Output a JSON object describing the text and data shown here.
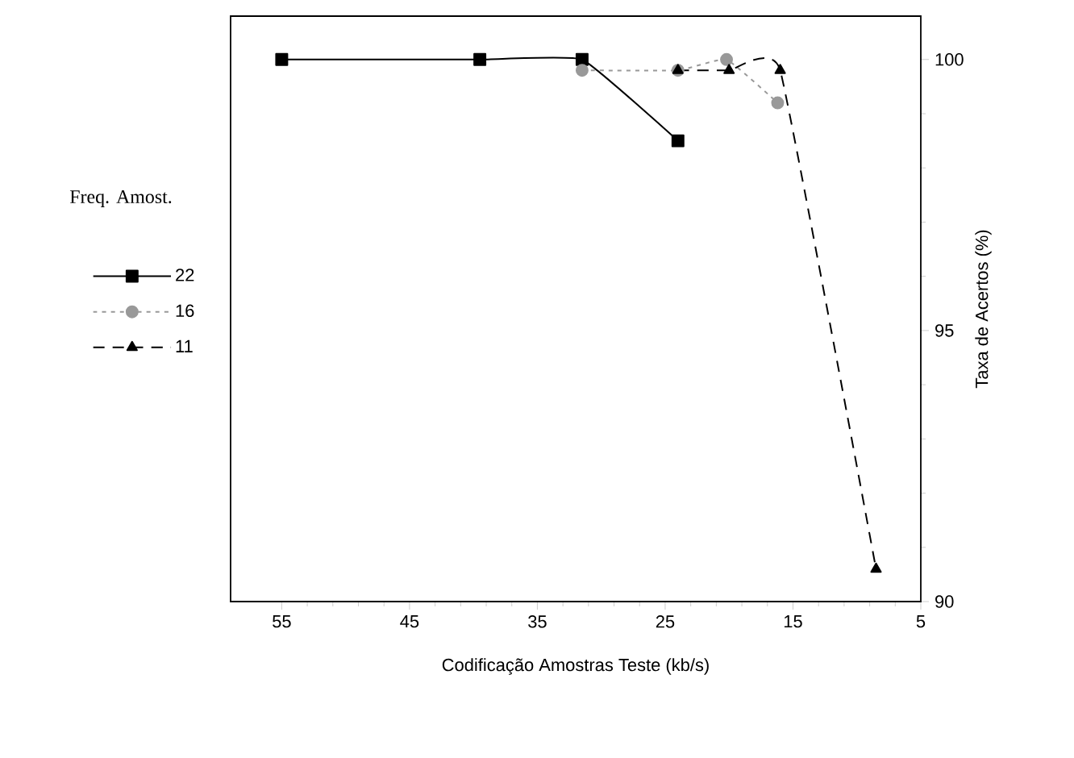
{
  "chart_data": {
    "type": "line",
    "xlabel": "Codificação Amostras Teste (kb/s)",
    "ylabel": "Taxa de Acertos (%)",
    "legend_title": "Freq. Amost.",
    "legend": "left",
    "grid": false,
    "xlim": [
      59,
      5
    ],
    "xticks": [
      55,
      45,
      35,
      25,
      15,
      5
    ],
    "ylim": [
      90,
      100.8
    ],
    "yticks": [
      90,
      95,
      100
    ],
    "series": [
      {
        "name": "22",
        "color": "#000000",
        "marker": "square",
        "line_style": "solid",
        "x": [
          55,
          39.5,
          31.5,
          24
        ],
        "values": [
          100,
          100,
          100,
          98.5
        ]
      },
      {
        "name": "16",
        "color": "#999999",
        "marker": "circle",
        "line_style": "dotted",
        "x": [
          31.5,
          24,
          20.2,
          16.2
        ],
        "values": [
          99.8,
          99.8,
          100,
          99.2
        ]
      },
      {
        "name": "11",
        "color": "#000000",
        "marker": "triangle",
        "line_style": "dashed",
        "x": [
          24,
          20,
          16,
          8.5
        ],
        "values": [
          99.8,
          99.8,
          99.8,
          90.6
        ]
      }
    ]
  }
}
